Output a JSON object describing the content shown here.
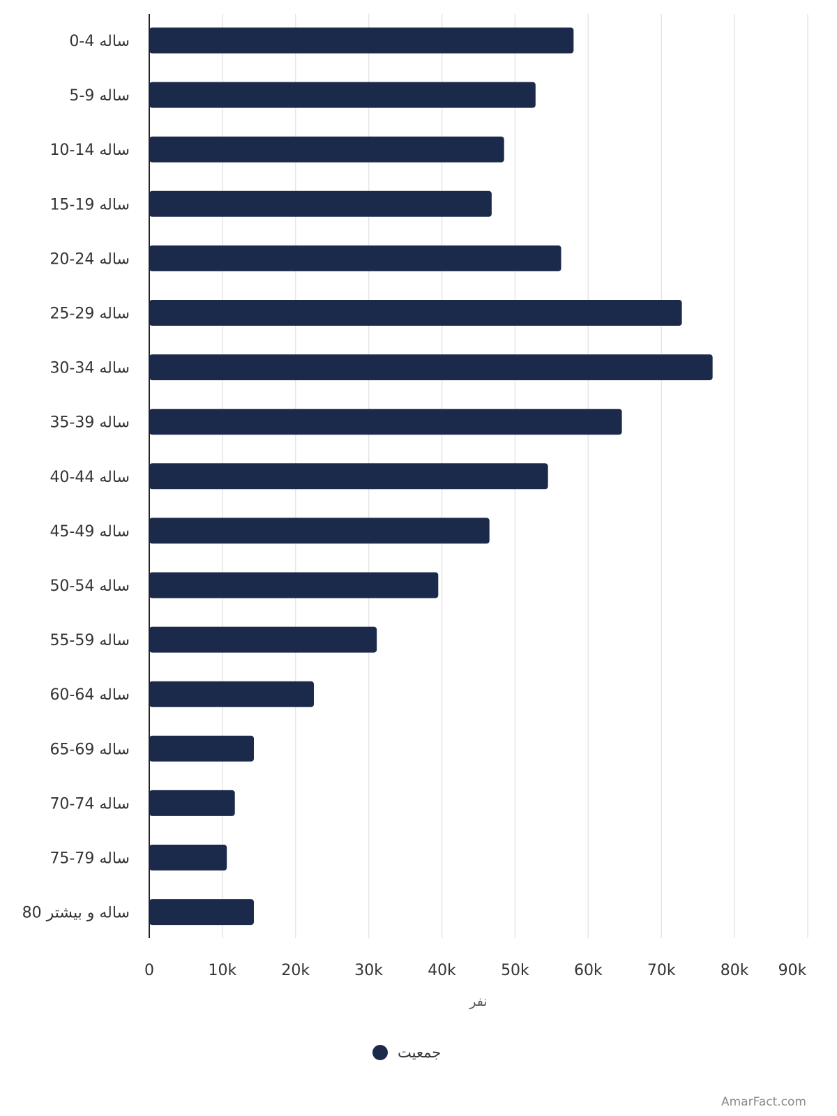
{
  "chart_data": {
    "type": "bar",
    "orientation": "horizontal",
    "categories": [
      "0-4 ساله",
      "5-9 ساله",
      "10-14 ساله",
      "15-19 ساله",
      "20-24 ساله",
      "25-29 ساله",
      "30-34 ساله",
      "35-39 ساله",
      "40-44 ساله",
      "45-49 ساله",
      "50-54 ساله",
      "55-59 ساله",
      "60-64 ساله",
      "65-69 ساله",
      "70-74 ساله",
      "75-79 ساله",
      "80 ساله و بیشتر"
    ],
    "series": [
      {
        "name": "جمعیت",
        "values": [
          58000,
          52800,
          48500,
          46800,
          56300,
          72800,
          77000,
          64600,
          54500,
          46500,
          39500,
          31100,
          22500,
          14300,
          11700,
          10600,
          14300
        ]
      }
    ],
    "xlabel": "نفر",
    "ylabel": "",
    "xlim": [
      0,
      90000
    ],
    "xticks": [
      0,
      10000,
      20000,
      30000,
      40000,
      50000,
      60000,
      70000,
      80000,
      90000
    ],
    "xtick_labels": [
      "0",
      "10k",
      "20k",
      "30k",
      "40k",
      "50k",
      "60k",
      "70k",
      "80k",
      "90k"
    ],
    "grid": "vertical",
    "legend_position": "bottom-center",
    "bar_color": "#1b2a4a",
    "grid_color": "#e6e6e6",
    "axis_color": "#222222"
  },
  "watermark": "AmarFact.com"
}
